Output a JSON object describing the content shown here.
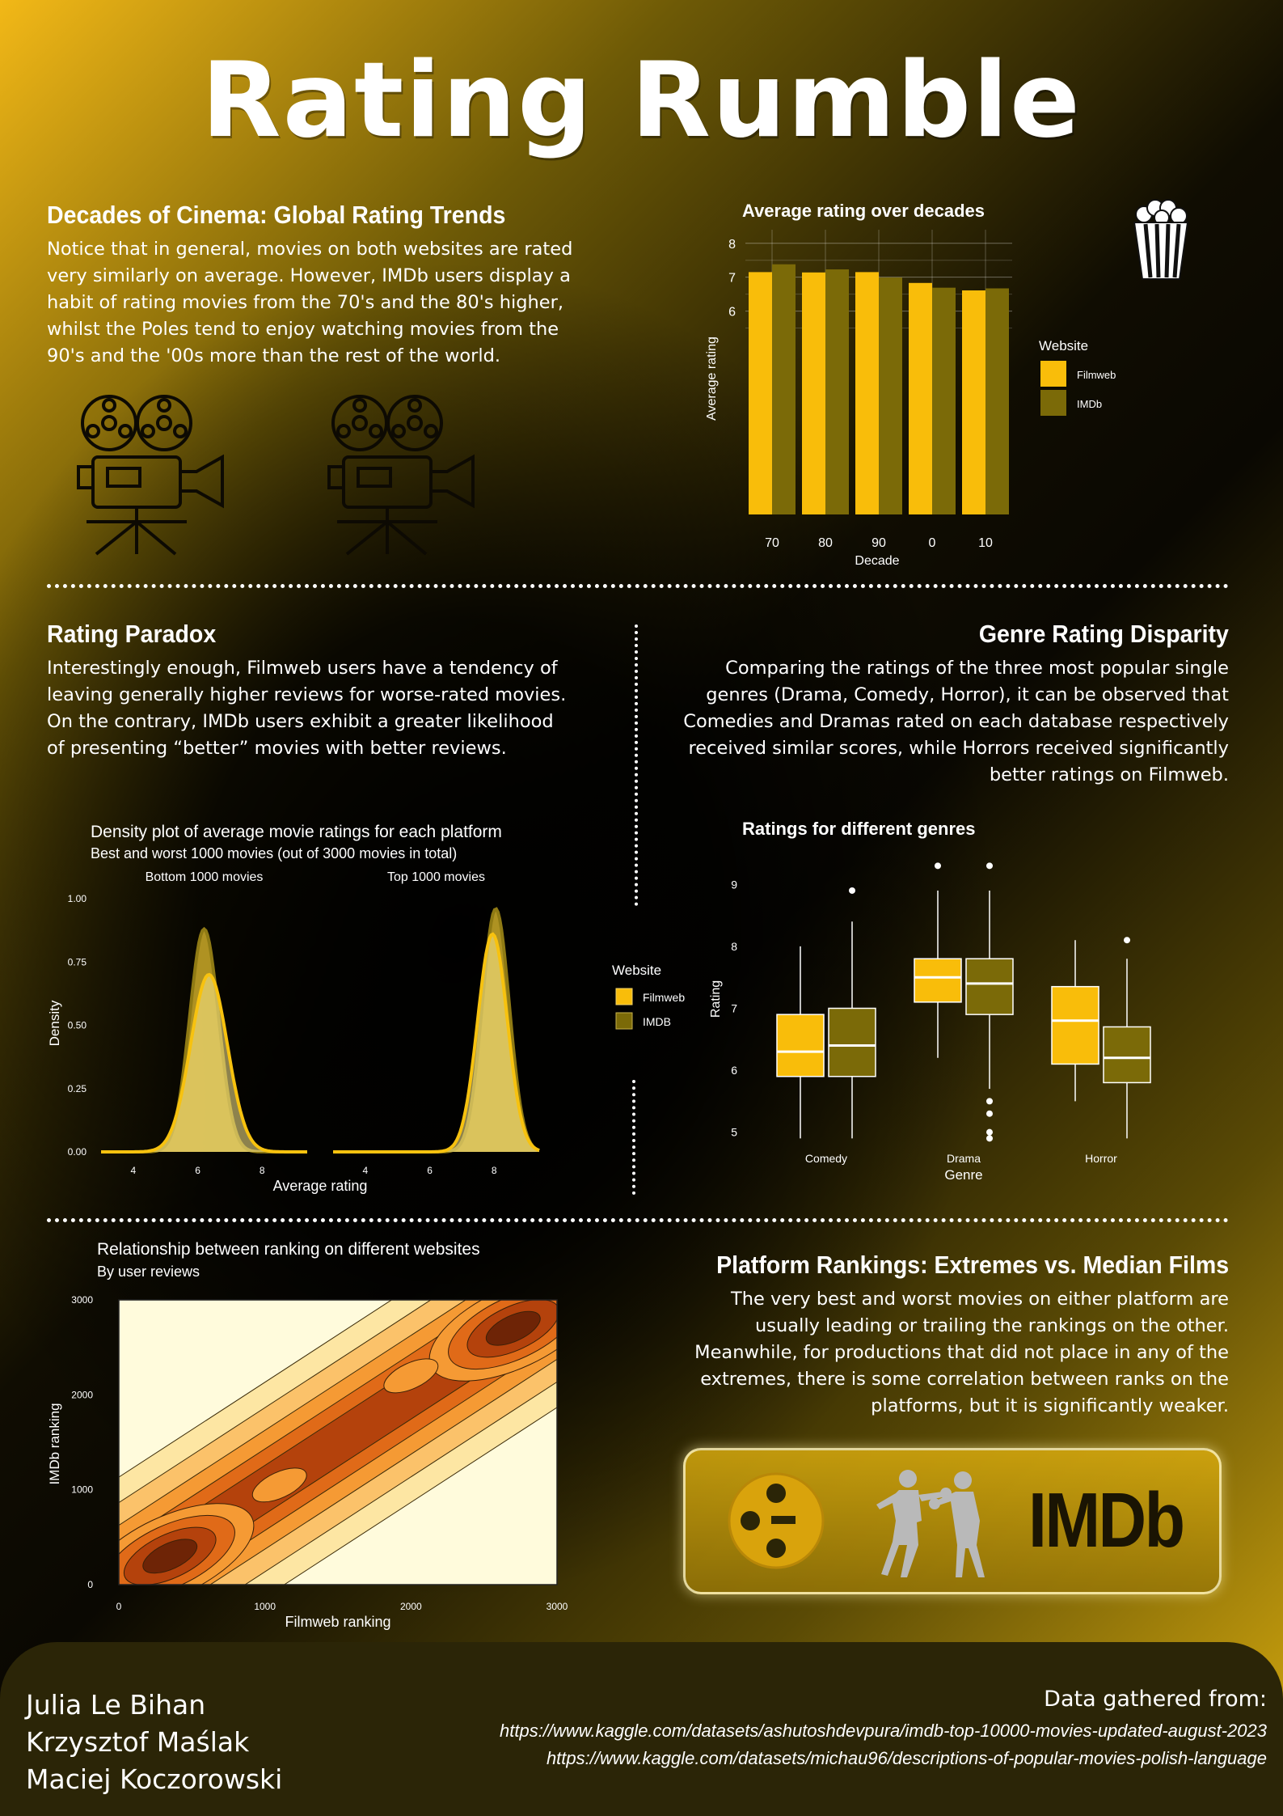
{
  "title": "Rating Rumble",
  "sections": {
    "decades": {
      "heading": "Decades of Cinema: Global Rating Trends",
      "lines": [
        "Notice that in general, movies on both websites are rated",
        "very similarly on average. However, IMDb users display a",
        "habit of rating movies from the 70's and the 80's higher,",
        "whilst the Poles tend to enjoy watching movies from the",
        "90's and the '00s more than the rest of the world."
      ]
    },
    "paradox": {
      "heading": "Rating Paradox",
      "lines": [
        "Interestingly enough, Filmweb users have a tendency of",
        "leaving generally higher reviews for worse-rated movies.",
        "On the contrary, IMDb users exhibit a greater likelihood",
        "of presenting “better” movies with better reviews."
      ]
    },
    "genre": {
      "heading": "Genre Rating Disparity",
      "lines": [
        "Comparing the ratings of the three most popular single",
        "genres (Drama, Comedy, Horror), it can be observed that",
        "Comedies and Dramas rated on each database respectively",
        "received similar scores, while Horrors received significantly",
        "better ratings on Filmweb."
      ]
    },
    "rankings": {
      "heading": "Platform Rankings: Extremes vs. Median Films",
      "lines": [
        "The very best and worst movies on either platform are",
        "usually leading or trailing the rankings on the other.",
        "Meanwhile, for productions that did not place in any of the",
        "extremes, there is some correlation between ranks on the",
        "platforms, but it is significantly weaker."
      ]
    }
  },
  "logo": {
    "text": "IMDb"
  },
  "footer": {
    "authors": [
      "Julia Le Bihan",
      "Krzysztof Maślak",
      "Maciej Koczorowski"
    ],
    "source_label": "Data gathered from:",
    "urls": [
      "https://www.kaggle.com/datasets/ashutoshdevpura/imdb-top-10000-movies-updated-august-2023",
      "https://www.kaggle.com/datasets/michau96/descriptions-of-popular-movies-polish-language"
    ]
  },
  "colors": {
    "filmweb": "#f9bd0a",
    "imdb": "#7b6a08",
    "paper": "#fffbdc"
  },
  "chart_data": [
    {
      "type": "bar",
      "title": "Average rating over decades",
      "xlabel": "Decade",
      "ylabel": "Average rating",
      "categories": [
        "70",
        "80",
        "90",
        "0",
        "10"
      ],
      "yticks": [
        6,
        7,
        8
      ],
      "ylim": [
        0,
        8.4
      ],
      "grid": true,
      "legend": {
        "title": "Website",
        "position": "right"
      },
      "series": [
        {
          "name": "Filmweb",
          "values": [
            7.15,
            7.14,
            7.15,
            6.83,
            6.61
          ]
        },
        {
          "name": "IMDb",
          "values": [
            7.38,
            7.23,
            6.99,
            6.69,
            6.67
          ]
        }
      ]
    },
    {
      "type": "area",
      "title": "Density plot of average movie ratings for each platform",
      "subtitle": "Best and worst 1000 movies (out of 3000 movies in total)",
      "xlabel": "Average rating",
      "ylabel": "Density",
      "yticks": [
        "0.00",
        "0.25",
        "0.50",
        "0.75",
        "1.00"
      ],
      "xticks": [
        "4",
        "6",
        "8"
      ],
      "ylim": [
        0,
        1.0
      ],
      "legend": {
        "title": "Website",
        "position": "right",
        "entries": [
          "Filmweb",
          "IMDB"
        ]
      },
      "panels": [
        {
          "label": "Bottom 1000 movies",
          "xlim": [
            3,
            9.4
          ],
          "series": [
            {
              "name": "Filmweb",
              "mean": 6.35,
              "sd": 0.57,
              "peak": 0.7
            },
            {
              "name": "IMDB",
              "mean": 6.2,
              "sd": 0.45,
              "peak": 0.88
            }
          ]
        },
        {
          "label": "Top 1000 movies",
          "xlim": [
            3,
            9.4
          ],
          "series": [
            {
              "name": "Filmweb",
              "mean": 7.95,
              "sd": 0.46,
              "peak": 0.86
            },
            {
              "name": "IMDB",
              "mean": 8.05,
              "sd": 0.42,
              "peak": 0.96
            }
          ]
        }
      ]
    },
    {
      "type": "box",
      "title": "Ratings for different genres",
      "xlabel": "Genre",
      "ylabel": "Rating",
      "yticks": [
        5,
        6,
        7,
        8,
        9
      ],
      "ylim": [
        4.8,
        9.5
      ],
      "categories": [
        "Comedy",
        "Drama",
        "Horror"
      ],
      "series": [
        {
          "name": "Filmweb",
          "boxes": [
            {
              "min": 4.9,
              "q1": 5.9,
              "median": 6.3,
              "q3": 6.9,
              "max": 8.0,
              "outliers": []
            },
            {
              "min": 6.2,
              "q1": 7.1,
              "median": 7.5,
              "q3": 7.8,
              "max": 8.9,
              "outliers": [
                9.3
              ]
            },
            {
              "min": 5.5,
              "q1": 6.1,
              "median": 6.8,
              "q3": 7.35,
              "max": 8.1,
              "outliers": []
            }
          ]
        },
        {
          "name": "IMDb",
          "boxes": [
            {
              "min": 4.9,
              "q1": 5.9,
              "median": 6.4,
              "q3": 7.0,
              "max": 8.4,
              "outliers": [
                8.9
              ]
            },
            {
              "min": 5.7,
              "q1": 6.9,
              "median": 7.4,
              "q3": 7.8,
              "max": 8.9,
              "outliers": [
                9.3,
                5.5,
                5.3,
                5.0,
                4.9
              ]
            },
            {
              "min": 4.9,
              "q1": 5.8,
              "median": 6.2,
              "q3": 6.7,
              "max": 7.8,
              "outliers": [
                8.1
              ]
            }
          ]
        }
      ]
    },
    {
      "type": "heatmap",
      "title": "Relationship between ranking on different websites",
      "subtitle": "By user reviews",
      "xlabel": "Filmweb ranking",
      "ylabel": "IMDb ranking",
      "xlim": [
        0,
        3000
      ],
      "ylim": [
        0,
        3000
      ],
      "xticks": [
        0,
        1000,
        2000,
        3000
      ],
      "yticks": [
        0,
        1000,
        2000,
        3000
      ],
      "palette": [
        "#fffbdc",
        "#fde6a3",
        "#fbc26a",
        "#f59a34",
        "#e06a18",
        "#b4420c",
        "#6e2406"
      ],
      "peaks": [
        {
          "x": 350,
          "y": 300,
          "level": 6
        },
        {
          "x": 2700,
          "y": 2700,
          "level": 6
        },
        {
          "x": 2000,
          "y": 2200,
          "level": 3
        },
        {
          "x": 1100,
          "y": 1050,
          "level": 3
        }
      ]
    }
  ]
}
